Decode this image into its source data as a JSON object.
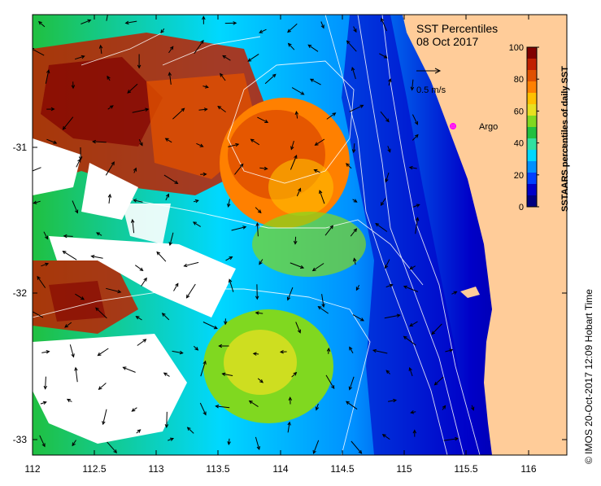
{
  "title": {
    "line1": "SST Percentiles",
    "line2": "08 Oct 2017"
  },
  "vector_scale": {
    "label": "0.5 m/s"
  },
  "argo": {
    "label": "Argo",
    "color": "#ff00ff",
    "lon": 115.35,
    "lat": -30.87
  },
  "colorbar": {
    "title": "SSTAARS percentiles of daily SST",
    "ticks": [
      "0",
      "20",
      "40",
      "60",
      "80",
      "100"
    ],
    "colors": [
      "#000080",
      "#0000c8",
      "#0040ff",
      "#0090ff",
      "#00d8ff",
      "#30e0a0",
      "#20c040",
      "#80d820",
      "#e8e020",
      "#ffc000",
      "#ff8000",
      "#e05000",
      "#c02000",
      "#800000"
    ]
  },
  "credit": "© IMOS 20-Oct-2017 12:09 Hobart Time",
  "axes": {
    "lon_ticks": [
      "112",
      "112.5",
      "113",
      "113.5",
      "114",
      "114.5",
      "115",
      "115.5",
      "116"
    ],
    "lat_ticks": [
      "-31",
      "-32",
      "-33"
    ]
  },
  "colors": {
    "land": "#ffcc99",
    "no_data": "#ffffff"
  }
}
